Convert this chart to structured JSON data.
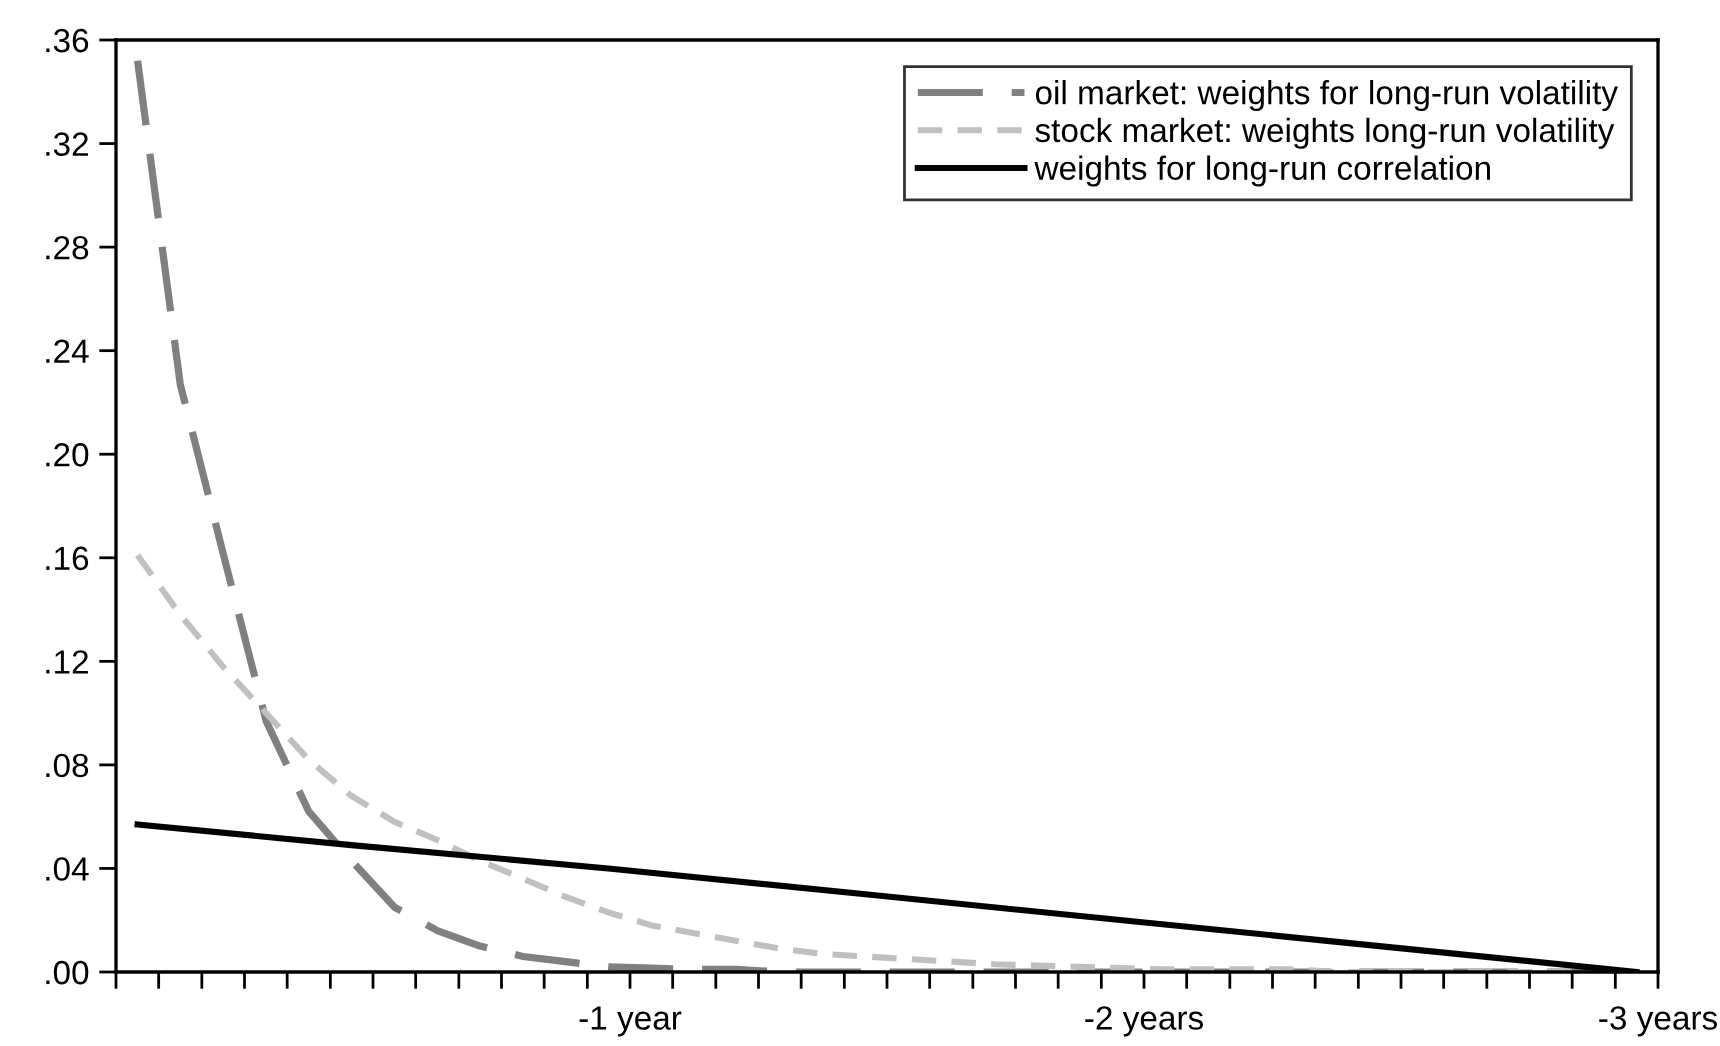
{
  "chart_data": {
    "type": "line",
    "x": [
      -0.042,
      -0.125,
      -0.208,
      -0.292,
      -0.375,
      -0.458,
      -0.542,
      -0.625,
      -0.708,
      -0.792,
      -0.875,
      -0.958,
      -1.042,
      -1.125,
      -1.208,
      -1.292,
      -1.375,
      -1.458,
      -1.542,
      -1.625,
      -1.708,
      -1.792,
      -1.875,
      -1.958,
      -2.042,
      -2.125,
      -2.208,
      -2.292,
      -2.375,
      -2.458,
      -2.542,
      -2.625,
      -2.708,
      -2.792,
      -2.875,
      -2.958
    ],
    "series": [
      {
        "name": "oil market: weights for long-run volatility",
        "color": "#808080",
        "line_style": "long dashed",
        "values": [
          0.352,
          0.227,
          0.162,
          0.097,
          0.062,
          0.043,
          0.025,
          0.016,
          0.01,
          0.006,
          0.004,
          0.002,
          0.0015,
          0.001,
          0.001,
          0,
          0,
          0,
          0,
          0,
          0,
          0,
          0,
          0,
          0,
          0,
          0,
          0,
          0,
          0,
          0,
          0,
          0,
          0,
          0,
          0
        ]
      },
      {
        "name": "stock market: weights long-run volatility",
        "color": "#c0c0c0",
        "line_style": "dashed",
        "values": [
          0.161,
          0.138,
          0.118,
          0.1,
          0.082,
          0.068,
          0.058,
          0.051,
          0.043,
          0.036,
          0.029,
          0.023,
          0.018,
          0.015,
          0.012,
          0.009,
          0.007,
          0.006,
          0.005,
          0.004,
          0.003,
          0.0025,
          0.002,
          0.0015,
          0.001,
          0.001,
          0.001,
          0.001,
          0,
          0,
          0,
          0,
          0,
          0,
          0,
          0
        ]
      },
      {
        "name": "weights for long-run correlation",
        "color": "#000000",
        "line_style": "solid",
        "x": [
          -0.042,
          -0.458,
          -0.958,
          -1.458,
          -1.958,
          -2.458,
          -2.958
        ],
        "values": [
          0.057,
          0.049,
          0.04,
          0.03,
          0.02,
          0.01,
          0.0
        ]
      }
    ],
    "xlim": [
      0,
      -3
    ],
    "xticks": [
      {
        "value": 0,
        "label": null
      },
      {
        "value": -0.083,
        "label": null
      },
      {
        "value": -0.167,
        "label": null
      },
      {
        "value": -0.25,
        "label": null
      },
      {
        "value": -0.333,
        "label": null
      },
      {
        "value": -0.417,
        "label": null
      },
      {
        "value": -0.5,
        "label": null
      },
      {
        "value": -0.583,
        "label": null
      },
      {
        "value": -0.667,
        "label": null
      },
      {
        "value": -0.75,
        "label": null
      },
      {
        "value": -0.833,
        "label": null
      },
      {
        "value": -0.917,
        "label": null
      },
      {
        "value": -1,
        "label": "-1 year"
      },
      {
        "value": -1.083,
        "label": null
      },
      {
        "value": -1.167,
        "label": null
      },
      {
        "value": -1.25,
        "label": null
      },
      {
        "value": -1.333,
        "label": null
      },
      {
        "value": -1.417,
        "label": null
      },
      {
        "value": -1.5,
        "label": null
      },
      {
        "value": -1.583,
        "label": null
      },
      {
        "value": -1.667,
        "label": null
      },
      {
        "value": -1.75,
        "label": null
      },
      {
        "value": -1.833,
        "label": null
      },
      {
        "value": -1.917,
        "label": null
      },
      {
        "value": -2,
        "label": "-2 years"
      },
      {
        "value": -2.083,
        "label": null
      },
      {
        "value": -2.167,
        "label": null
      },
      {
        "value": -2.25,
        "label": null
      },
      {
        "value": -2.333,
        "label": null
      },
      {
        "value": -2.417,
        "label": null
      },
      {
        "value": -2.5,
        "label": null
      },
      {
        "value": -2.583,
        "label": null
      },
      {
        "value": -2.667,
        "label": null
      },
      {
        "value": -2.75,
        "label": null
      },
      {
        "value": -2.833,
        "label": null
      },
      {
        "value": -2.917,
        "label": null
      },
      {
        "value": -3,
        "label": "-3 years"
      }
    ],
    "ylim": [
      0,
      0.36
    ],
    "yticks": [
      {
        "value": 0,
        "label": ".00"
      },
      {
        "value": 0.04,
        "label": ".04"
      },
      {
        "value": 0.08,
        "label": ".08"
      },
      {
        "value": 0.12,
        "label": ".12"
      },
      {
        "value": 0.16,
        "label": ".16"
      },
      {
        "value": 0.2,
        "label": ".20"
      },
      {
        "value": 0.24,
        "label": ".24"
      },
      {
        "value": 0.28,
        "label": ".28"
      },
      {
        "value": 0.32,
        "label": ".32"
      },
      {
        "value": 0.36,
        "label": ".36"
      }
    ],
    "grid": false,
    "legend": "top right",
    "marker": "none"
  }
}
